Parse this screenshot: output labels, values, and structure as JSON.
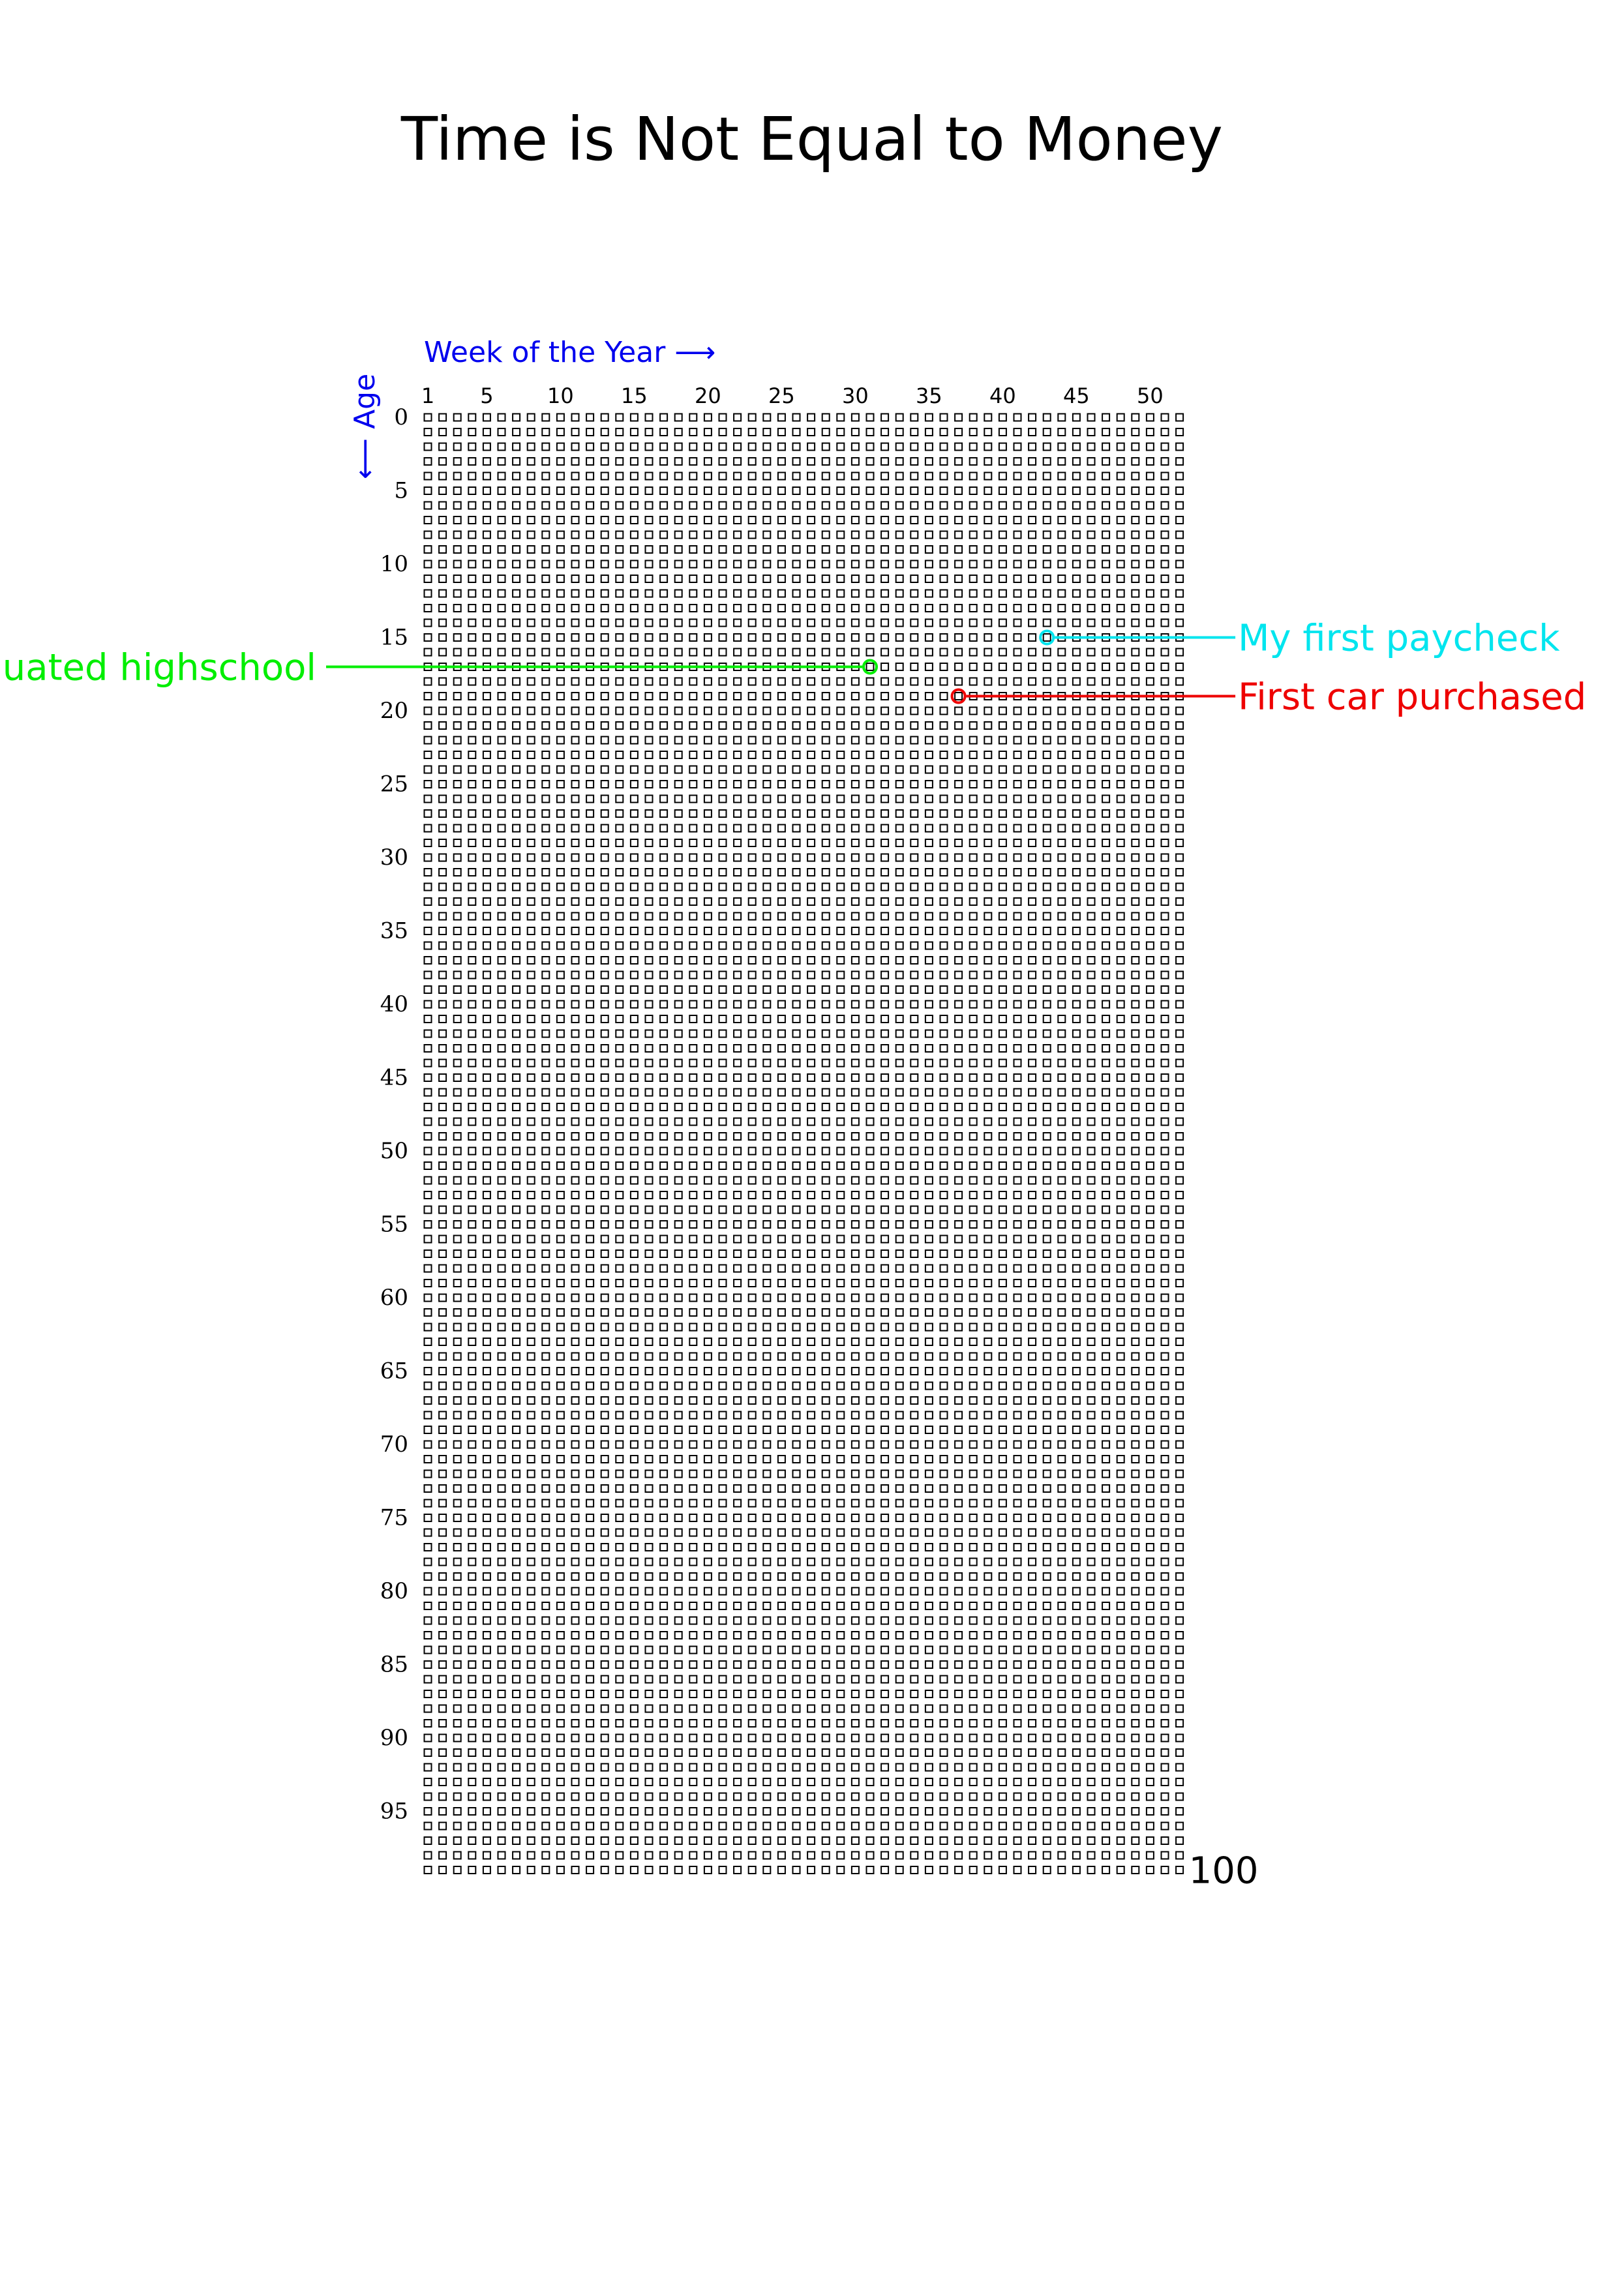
{
  "chart_data": {
    "type": "scatter",
    "title": "Time is Not Equal to Money",
    "xlabel": "Week of the Year ⟶",
    "ylabel": "⟵ Age",
    "weeks_per_year": 52,
    "years": 100,
    "x_ticks": [
      1,
      5,
      10,
      15,
      20,
      25,
      30,
      35,
      40,
      45,
      50
    ],
    "y_ticks": [
      0,
      5,
      10,
      15,
      20,
      25,
      30,
      35,
      40,
      45,
      50,
      55,
      60,
      65,
      70,
      75,
      80,
      85,
      90,
      95
    ],
    "end_label": "100",
    "grid_color": "#000000",
    "events": [
      {
        "label": "My first paycheck",
        "age": 15,
        "week": 43,
        "color": "#00e5ee",
        "side": "right"
      },
      {
        "label": "Graduated highschool",
        "age": 17,
        "week": 31,
        "color": "#00ee00",
        "side": "left"
      },
      {
        "label": "First car purchased",
        "age": 19,
        "week": 37,
        "color": "#ee0000",
        "side": "right"
      }
    ]
  }
}
